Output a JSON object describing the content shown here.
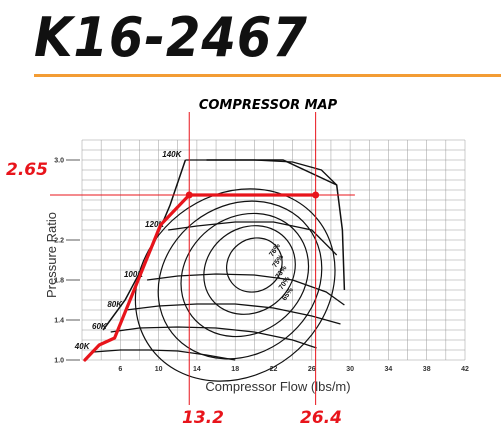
{
  "header": {
    "model": "K16-2467",
    "rule_color": "#f39c34"
  },
  "colors": {
    "annotation": "#e8141b",
    "curves": "#111111",
    "grid": "#9a9a9a"
  },
  "chart_data": {
    "type": "line",
    "title": "COMPRESSOR MAP",
    "xlabel": "Compressor Flow (lbs/m)",
    "ylabel": "Pressure Ratio",
    "xlim": [
      2,
      42
    ],
    "ylim": [
      1.0,
      3.2
    ],
    "x_tick_labels": [
      "6",
      "10",
      "14",
      "18",
      "22",
      "26",
      "30",
      "34",
      "38",
      "42"
    ],
    "x_tick_values": [
      6,
      10,
      14,
      18,
      22,
      26,
      30,
      34,
      38,
      42
    ],
    "y_tick_labels": [
      "1.0",
      "1.4",
      "1.8",
      "2.2",
      "3.0"
    ],
    "y_tick_values": [
      1.0,
      1.4,
      1.8,
      2.2,
      3.0
    ],
    "surge_line": [
      [
        4.2,
        1.3
      ],
      [
        6.5,
        1.6
      ],
      [
        9.0,
        2.05
      ],
      [
        11.2,
        2.55
      ],
      [
        12.8,
        3.0
      ]
    ],
    "choke_line": [
      [
        15.0,
        3.0
      ],
      [
        23.0,
        3.0
      ],
      [
        28.6,
        2.75
      ],
      [
        29.2,
        2.3
      ],
      [
        29.4,
        1.7
      ]
    ],
    "speed_lines": [
      {
        "name": "140K",
        "points": [
          [
            12.8,
            3.0
          ],
          [
            15.0,
            3.0
          ],
          [
            20.0,
            3.0
          ],
          [
            24.0,
            2.98
          ],
          [
            27.0,
            2.9
          ],
          [
            28.6,
            2.75
          ]
        ]
      },
      {
        "name": "120K",
        "points": [
          [
            11.0,
            2.3
          ],
          [
            14.0,
            2.34
          ],
          [
            18.0,
            2.38
          ],
          [
            22.0,
            2.38
          ],
          [
            26.0,
            2.3
          ],
          [
            28.6,
            2.05
          ]
        ]
      },
      {
        "name": "100K",
        "points": [
          [
            8.8,
            1.8
          ],
          [
            12.0,
            1.84
          ],
          [
            16.0,
            1.86
          ],
          [
            20.0,
            1.85
          ],
          [
            24.0,
            1.8
          ],
          [
            27.5,
            1.68
          ],
          [
            29.4,
            1.55
          ]
        ]
      },
      {
        "name": "80K",
        "points": [
          [
            6.6,
            1.5
          ],
          [
            10.0,
            1.54
          ],
          [
            14.0,
            1.56
          ],
          [
            18.0,
            1.56
          ],
          [
            22.0,
            1.52
          ],
          [
            26.0,
            1.44
          ],
          [
            29.0,
            1.36
          ]
        ]
      },
      {
        "name": "60K",
        "points": [
          [
            5.0,
            1.28
          ],
          [
            8.0,
            1.32
          ],
          [
            12.0,
            1.33
          ],
          [
            16.0,
            1.32
          ],
          [
            20.0,
            1.28
          ],
          [
            24.0,
            1.2
          ],
          [
            26.5,
            1.12
          ]
        ]
      },
      {
        "name": "40K",
        "points": [
          [
            3.2,
            1.08
          ],
          [
            6.0,
            1.1
          ],
          [
            9.0,
            1.1
          ],
          [
            12.0,
            1.09
          ],
          [
            15.0,
            1.05
          ],
          [
            18.0,
            1.0
          ]
        ]
      }
    ],
    "efficiency_islands": [
      {
        "name": "76%",
        "cx": 20.0,
        "cy": 1.95,
        "rx": 3.0,
        "ry": 0.26
      },
      {
        "name": "75%",
        "cx": 19.5,
        "cy": 1.9,
        "rx": 5.0,
        "ry": 0.42
      },
      {
        "name": "73%",
        "cx": 19.0,
        "cy": 1.85,
        "rx": 7.0,
        "ry": 0.58
      },
      {
        "name": "70%",
        "cx": 18.5,
        "cy": 1.8,
        "rx": 9.0,
        "ry": 0.74
      },
      {
        "name": "65%",
        "cx": 18.0,
        "cy": 1.75,
        "rx": 11.0,
        "ry": 0.9
      }
    ],
    "operating_line": [
      [
        2.3,
        1.0
      ],
      [
        3.8,
        1.15
      ],
      [
        5.4,
        1.22
      ],
      [
        6.6,
        1.5
      ],
      [
        10.2,
        2.35
      ],
      [
        13.2,
        2.65
      ],
      [
        26.4,
        2.65
      ]
    ],
    "annotations": {
      "pressure_ratio": "2.65",
      "flow_low": "13.2",
      "flow_high": "26.4"
    }
  }
}
